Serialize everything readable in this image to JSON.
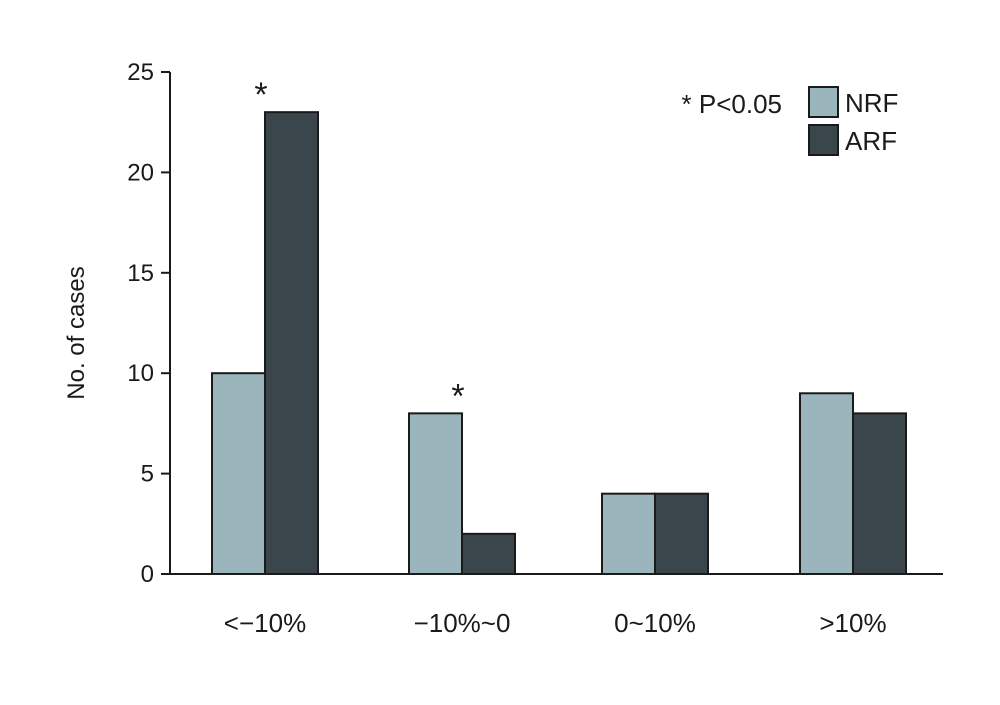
{
  "chart_data": {
    "type": "bar",
    "title": "",
    "xlabel": "",
    "ylabel": "No. of cases",
    "ylim": [
      0,
      25
    ],
    "yticks": [
      0,
      5,
      10,
      15,
      20,
      25
    ],
    "grid": false,
    "categories": [
      "<−10%",
      "−10%~0",
      "0~10%",
      ">10%"
    ],
    "series": [
      {
        "name": "NRF",
        "values": [
          10,
          8,
          4,
          9
        ],
        "color": "#9ab5bc"
      },
      {
        "name": "ARF",
        "values": [
          23,
          2,
          4,
          8
        ],
        "color": "#3a454c"
      }
    ],
    "legend_position": "top-right",
    "significance_marker": "*",
    "significance_note": "* P<0.05",
    "significant_categories": [
      0,
      1
    ]
  }
}
